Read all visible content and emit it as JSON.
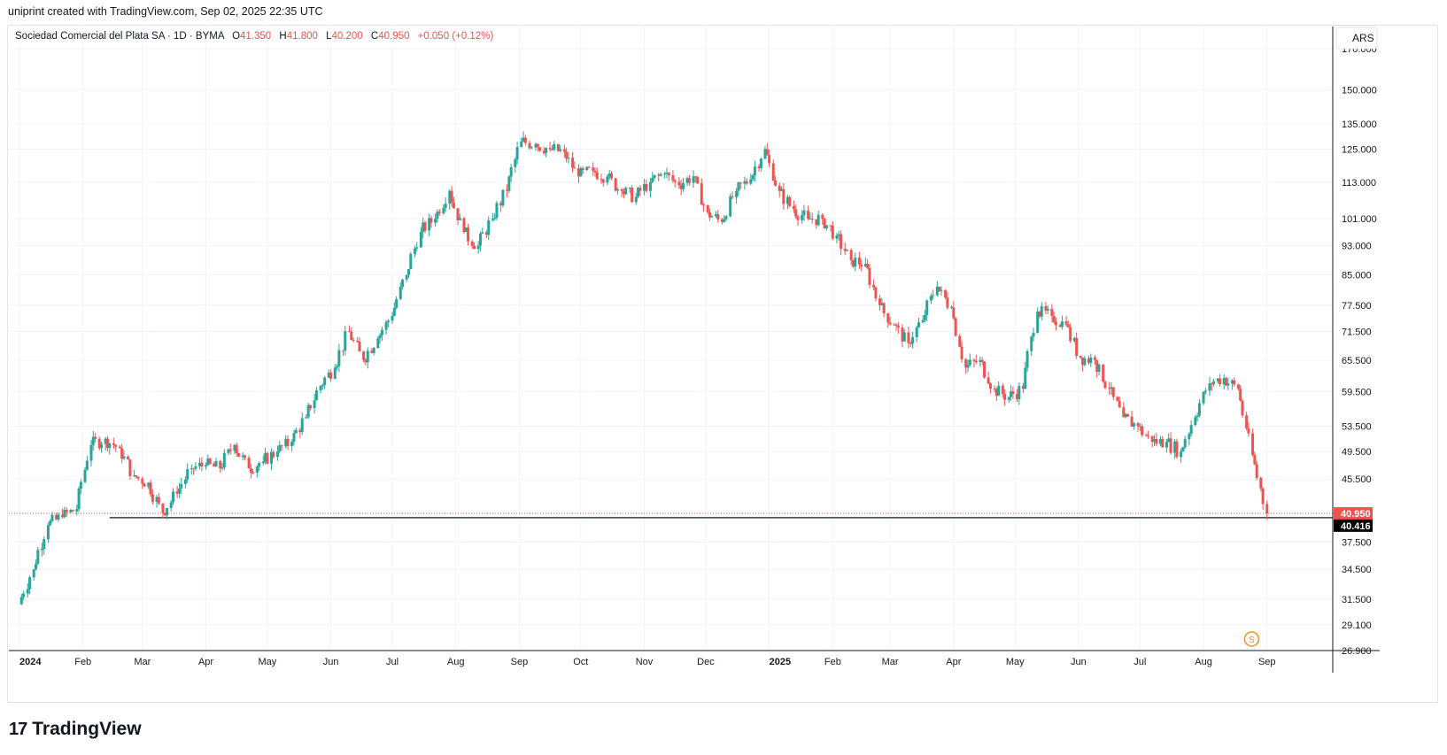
{
  "header": {
    "created_text": "uniprint created with TradingView.com, Sep 02, 2025 22:35 UTC"
  },
  "legend": {
    "symbol": "Sociedad Comercial del Plata SA · 1D · BYMA",
    "o_label": "O",
    "o_value": "41.350",
    "h_label": "H",
    "h_value": "41.800",
    "l_label": "L",
    "l_value": "40.200",
    "c_label": "C",
    "c_value": "40.950",
    "change": "+0.050 (+0.12%)"
  },
  "currency": "ARS",
  "footer": {
    "brand": "TradingView",
    "logo_mark": "17"
  },
  "event_marker": "S",
  "colors": {
    "up": "#26a69a",
    "down": "#ef5350",
    "last_price": "#ef5350",
    "hline": "#131722",
    "grid": "#f0f3fa"
  },
  "chart_data": {
    "type": "line",
    "title": "Sociedad Comercial del Plata SA · 1D · BYMA",
    "ylabel": "ARS",
    "y_scale": "log",
    "ylim": [
      26.9,
      182
    ],
    "y_ticks": [
      170,
      150,
      135,
      125,
      113,
      101,
      93,
      85,
      77.5,
      71.5,
      65.5,
      59.5,
      53.5,
      49.5,
      45.5,
      37.5,
      34.5,
      31.5,
      29.1,
      26.9
    ],
    "y_tick_labels": [
      "170.000",
      "150.000",
      "135.000",
      "125.000",
      "113.000",
      "101.000",
      "93.000",
      "85.000",
      "77.500",
      "71.500",
      "65.500",
      "59.500",
      "53.500",
      "49.500",
      "45.500",
      "37.500",
      "34.500",
      "31.500",
      "29.100",
      "26.900"
    ],
    "x_labels": [
      {
        "label": "2024",
        "date": "2024-01-01"
      },
      {
        "label": "Feb",
        "date": "2024-02-01"
      },
      {
        "label": "Mar",
        "date": "2024-03-01"
      },
      {
        "label": "Apr",
        "date": "2024-04-01"
      },
      {
        "label": "May",
        "date": "2024-05-01"
      },
      {
        "label": "Jun",
        "date": "2024-06-01"
      },
      {
        "label": "Jul",
        "date": "2024-07-01"
      },
      {
        "label": "Aug",
        "date": "2024-08-01"
      },
      {
        "label": "Sep",
        "date": "2024-09-01"
      },
      {
        "label": "Oct",
        "date": "2024-10-01"
      },
      {
        "label": "Nov",
        "date": "2024-11-01"
      },
      {
        "label": "Dec",
        "date": "2024-12-01"
      },
      {
        "label": "2025",
        "date": "2025-01-01"
      },
      {
        "label": "Feb",
        "date": "2025-02-01"
      },
      {
        "label": "Mar",
        "date": "2025-03-01"
      },
      {
        "label": "Apr",
        "date": "2025-04-01"
      },
      {
        "label": "May",
        "date": "2025-05-01"
      },
      {
        "label": "Jun",
        "date": "2025-06-01"
      },
      {
        "label": "Jul",
        "date": "2025-07-01"
      },
      {
        "label": "Aug",
        "date": "2025-08-01"
      },
      {
        "label": "Sep",
        "date": "2025-09-01"
      }
    ],
    "series": [
      {
        "name": "Close",
        "points": [
          {
            "date": "2024-01-01",
            "close": 31.0
          },
          {
            "date": "2024-01-08",
            "close": 34.5
          },
          {
            "date": "2024-01-15",
            "close": 39.5
          },
          {
            "date": "2024-01-22",
            "close": 40.5
          },
          {
            "date": "2024-01-29",
            "close": 41.5
          },
          {
            "date": "2024-02-05",
            "close": 50.5
          },
          {
            "date": "2024-02-12",
            "close": 51.5
          },
          {
            "date": "2024-02-19",
            "close": 50.0
          },
          {
            "date": "2024-02-26",
            "close": 46.0
          },
          {
            "date": "2024-03-04",
            "close": 45.0
          },
          {
            "date": "2024-03-11",
            "close": 41.0
          },
          {
            "date": "2024-03-18",
            "close": 43.5
          },
          {
            "date": "2024-03-25",
            "close": 47.0
          },
          {
            "date": "2024-04-01",
            "close": 47.5
          },
          {
            "date": "2024-04-08",
            "close": 47.0
          },
          {
            "date": "2024-04-15",
            "close": 50.5
          },
          {
            "date": "2024-04-22",
            "close": 47.0
          },
          {
            "date": "2024-04-29",
            "close": 48.0
          },
          {
            "date": "2024-05-06",
            "close": 49.5
          },
          {
            "date": "2024-05-13",
            "close": 51.0
          },
          {
            "date": "2024-05-20",
            "close": 55.0
          },
          {
            "date": "2024-05-27",
            "close": 60.5
          },
          {
            "date": "2024-06-03",
            "close": 64.0
          },
          {
            "date": "2024-06-10",
            "close": 71.5
          },
          {
            "date": "2024-06-17",
            "close": 65.5
          },
          {
            "date": "2024-06-24",
            "close": 70.0
          },
          {
            "date": "2024-07-01",
            "close": 75.0
          },
          {
            "date": "2024-07-08",
            "close": 85.0
          },
          {
            "date": "2024-07-15",
            "close": 97.0
          },
          {
            "date": "2024-07-22",
            "close": 101.0
          },
          {
            "date": "2024-07-29",
            "close": 110.0
          },
          {
            "date": "2024-08-05",
            "close": 97.0
          },
          {
            "date": "2024-08-12",
            "close": 93.0
          },
          {
            "date": "2024-08-19",
            "close": 101.0
          },
          {
            "date": "2024-08-26",
            "close": 110.0
          },
          {
            "date": "2024-09-02",
            "close": 128.0
          },
          {
            "date": "2024-09-09",
            "close": 127.0
          },
          {
            "date": "2024-09-16",
            "close": 125.0
          },
          {
            "date": "2024-09-23",
            "close": 124.0
          },
          {
            "date": "2024-09-30",
            "close": 115.0
          },
          {
            "date": "2024-10-07",
            "close": 117.0
          },
          {
            "date": "2024-10-14",
            "close": 115.0
          },
          {
            "date": "2024-10-21",
            "close": 110.0
          },
          {
            "date": "2024-10-28",
            "close": 108.0
          },
          {
            "date": "2024-11-04",
            "close": 113.0
          },
          {
            "date": "2024-11-11",
            "close": 116.0
          },
          {
            "date": "2024-11-18",
            "close": 112.0
          },
          {
            "date": "2024-11-25",
            "close": 115.0
          },
          {
            "date": "2024-12-02",
            "close": 103.0
          },
          {
            "date": "2024-12-09",
            "close": 100.0
          },
          {
            "date": "2024-12-16",
            "close": 110.0
          },
          {
            "date": "2024-12-23",
            "close": 114.0
          },
          {
            "date": "2024-12-30",
            "close": 125.0
          },
          {
            "date": "2025-01-06",
            "close": 110.0
          },
          {
            "date": "2025-01-13",
            "close": 104.0
          },
          {
            "date": "2025-01-20",
            "close": 101.0
          },
          {
            "date": "2025-01-27",
            "close": 101.0
          },
          {
            "date": "2025-02-03",
            "close": 96.0
          },
          {
            "date": "2025-02-10",
            "close": 89.0
          },
          {
            "date": "2025-02-17",
            "close": 88.0
          },
          {
            "date": "2025-02-24",
            "close": 77.5
          },
          {
            "date": "2025-03-03",
            "close": 73.0
          },
          {
            "date": "2025-03-10",
            "close": 69.0
          },
          {
            "date": "2025-03-17",
            "close": 74.0
          },
          {
            "date": "2025-03-24",
            "close": 82.0
          },
          {
            "date": "2025-03-31",
            "close": 77.0
          },
          {
            "date": "2025-04-07",
            "close": 64.0
          },
          {
            "date": "2025-04-14",
            "close": 65.5
          },
          {
            "date": "2025-04-21",
            "close": 60.0
          },
          {
            "date": "2025-04-28",
            "close": 58.5
          },
          {
            "date": "2025-05-05",
            "close": 60.0
          },
          {
            "date": "2025-05-12",
            "close": 76.0
          },
          {
            "date": "2025-05-19",
            "close": 75.0
          },
          {
            "date": "2025-05-26",
            "close": 73.0
          },
          {
            "date": "2025-06-02",
            "close": 66.0
          },
          {
            "date": "2025-06-09",
            "close": 65.5
          },
          {
            "date": "2025-06-16",
            "close": 60.0
          },
          {
            "date": "2025-06-23",
            "close": 55.0
          },
          {
            "date": "2025-06-30",
            "close": 53.5
          },
          {
            "date": "2025-07-07",
            "close": 51.0
          },
          {
            "date": "2025-07-14",
            "close": 51.0
          },
          {
            "date": "2025-07-21",
            "close": 49.5
          },
          {
            "date": "2025-07-28",
            "close": 55.0
          },
          {
            "date": "2025-08-04",
            "close": 61.0
          },
          {
            "date": "2025-08-11",
            "close": 62.0
          },
          {
            "date": "2025-08-18",
            "close": 60.0
          },
          {
            "date": "2025-08-25",
            "close": 49.0
          },
          {
            "date": "2025-09-01",
            "close": 40.95
          }
        ]
      }
    ],
    "last_price": {
      "value": 40.95,
      "label": "40.950"
    },
    "horizontal_line": {
      "value": 40.416,
      "label": "40.416",
      "start_date": "2024-02-14"
    },
    "event": {
      "date": "2025-08-18",
      "label": "S"
    },
    "grid": true,
    "legend_position": "top-left"
  }
}
